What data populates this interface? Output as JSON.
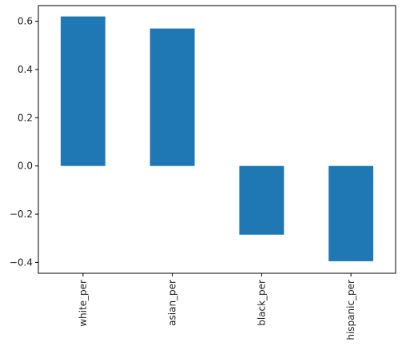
{
  "chart_data": {
    "type": "bar",
    "categories": [
      "white_per",
      "asian_per",
      "black_per",
      "hispanic_per"
    ],
    "values": [
      0.62,
      0.57,
      -0.285,
      -0.395
    ],
    "ylim": [
      -0.445,
      0.665
    ],
    "yticks": [
      -0.4,
      -0.2,
      0.0,
      0.2,
      0.4,
      0.6
    ],
    "ytick_labels": [
      "−0.4",
      "−0.2",
      "0.0",
      "0.2",
      "0.4",
      "0.6"
    ],
    "grid": false,
    "legend": "none",
    "colors": {
      "bar": "#1f77b4"
    }
  }
}
